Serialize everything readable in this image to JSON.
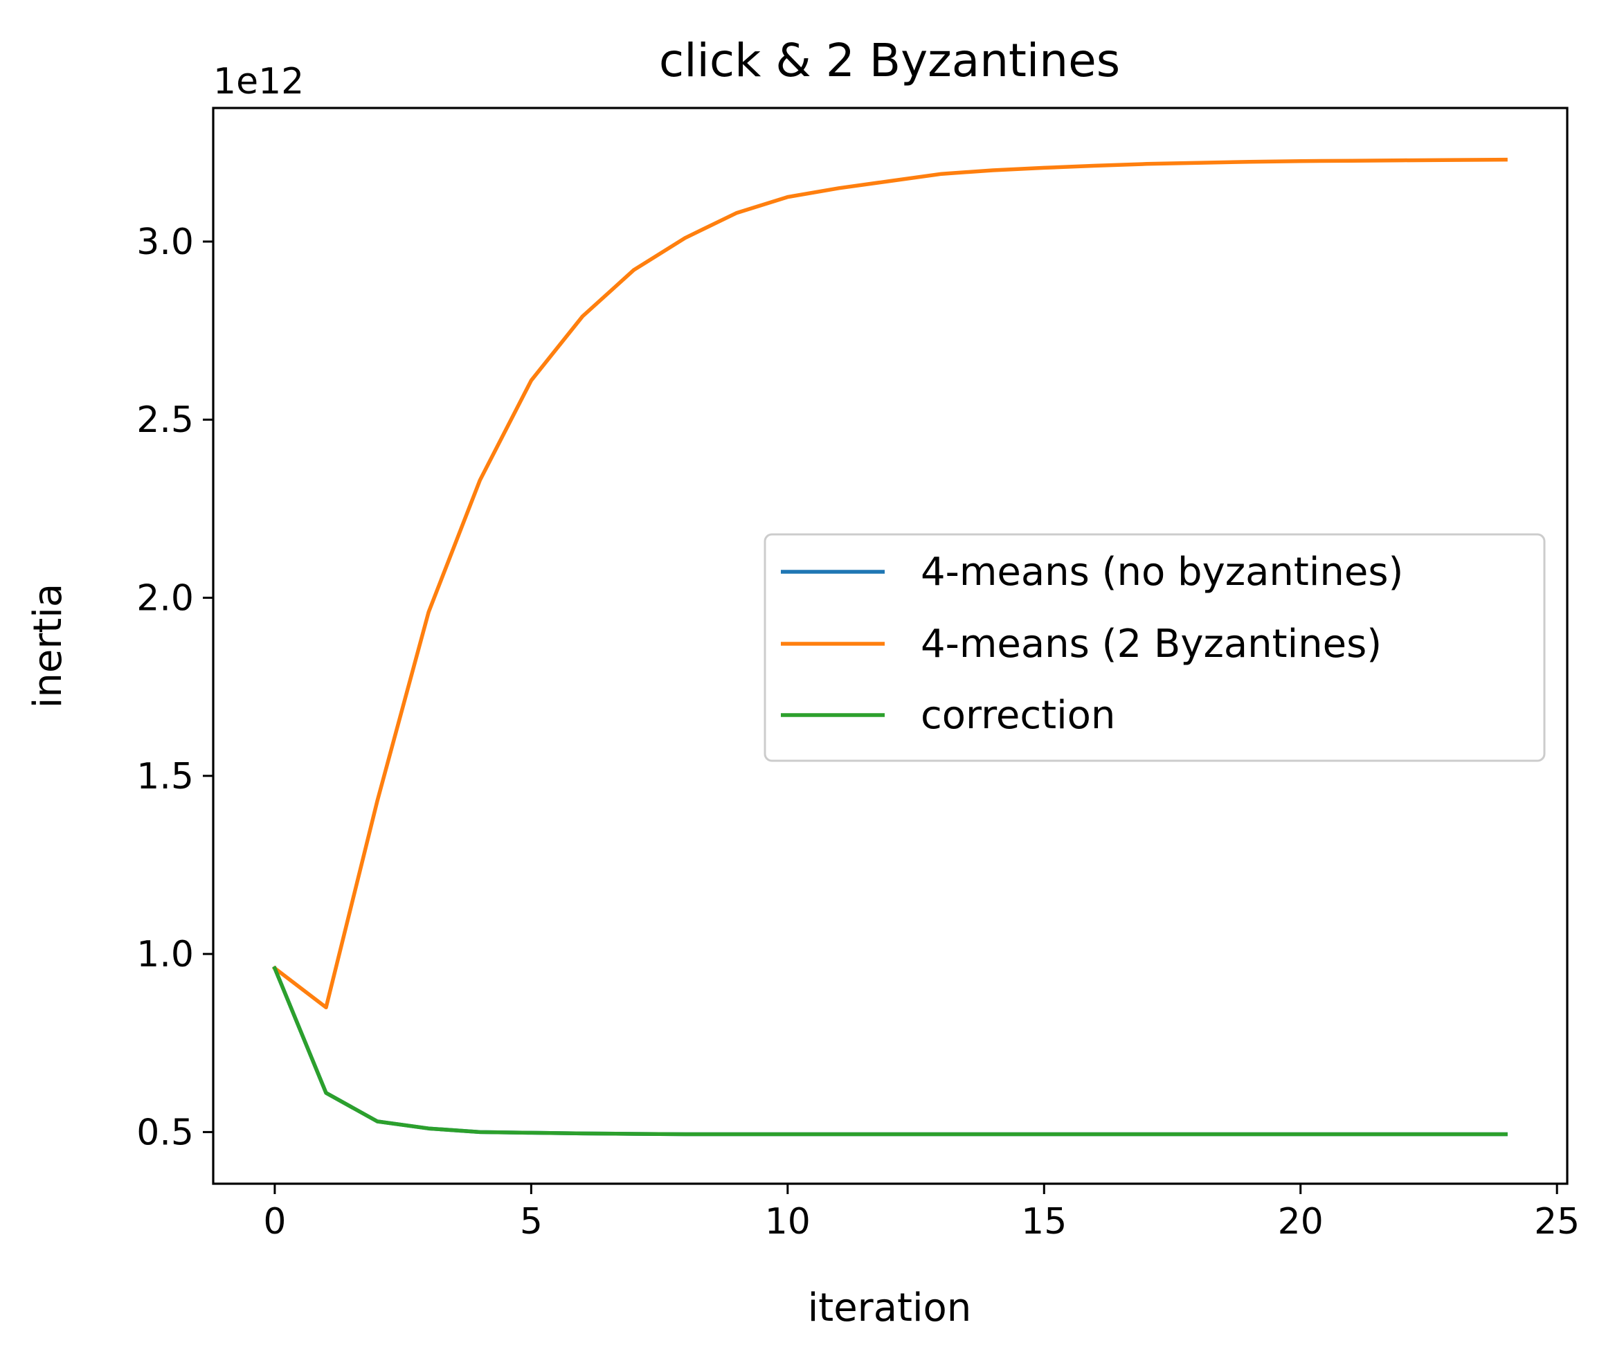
{
  "chart_data": {
    "type": "line",
    "title": "click & 2 Byzantines",
    "xlabel": "iteration",
    "ylabel": "inertia",
    "y_offset_label": "1e12",
    "y_scale": 1000000000000.0,
    "xlim": [
      -1.2,
      25.2
    ],
    "ylim": [
      0.355,
      3.375
    ],
    "xticks": [
      0,
      5,
      10,
      15,
      20,
      25
    ],
    "xtick_labels": [
      "0",
      "5",
      "10",
      "15",
      "20",
      "25"
    ],
    "yticks": [
      0.5,
      1.0,
      1.5,
      2.0,
      2.5,
      3.0
    ],
    "ytick_labels": [
      "0.5",
      "1.0",
      "1.5",
      "2.0",
      "2.5",
      "3.0"
    ],
    "grid": false,
    "legend_position": "center-right",
    "x": [
      0,
      1,
      2,
      3,
      4,
      5,
      6,
      7,
      8,
      9,
      10,
      11,
      12,
      13,
      14,
      15,
      16,
      17,
      18,
      19,
      20,
      21,
      22,
      23,
      24
    ],
    "series": [
      {
        "name": "4-means (no byzantines)",
        "color": "#1f77b4",
        "values": [
          0.96,
          0.61,
          0.53,
          0.51,
          0.5,
          0.498,
          0.496,
          0.495,
          0.494,
          0.494,
          0.494,
          0.494,
          0.494,
          0.494,
          0.494,
          0.494,
          0.494,
          0.494,
          0.494,
          0.494,
          0.494,
          0.494,
          0.494,
          0.494,
          0.494
        ]
      },
      {
        "name": "4-means (2 Byzantines)",
        "color": "#ff7f0e",
        "values": [
          0.96,
          0.85,
          1.43,
          1.96,
          2.33,
          2.61,
          2.79,
          2.92,
          3.01,
          3.08,
          3.125,
          3.15,
          3.17,
          3.19,
          3.2,
          3.207,
          3.213,
          3.218,
          3.221,
          3.224,
          3.226,
          3.227,
          3.228,
          3.229,
          3.23
        ]
      },
      {
        "name": "correction",
        "color": "#2ca02c",
        "values": [
          0.96,
          0.61,
          0.53,
          0.51,
          0.5,
          0.498,
          0.496,
          0.495,
          0.494,
          0.494,
          0.494,
          0.494,
          0.494,
          0.494,
          0.494,
          0.494,
          0.494,
          0.494,
          0.494,
          0.494,
          0.494,
          0.494,
          0.494,
          0.494,
          0.494
        ]
      }
    ]
  }
}
